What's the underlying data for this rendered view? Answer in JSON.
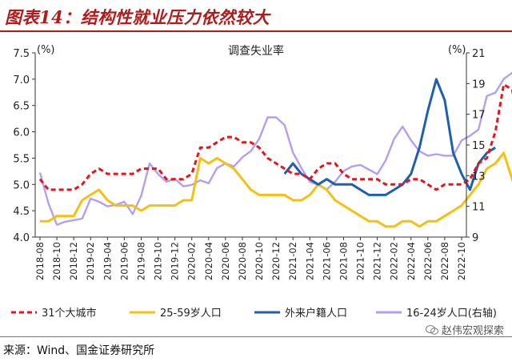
{
  "header": {
    "title": "图表14：结构性就业压力依然较大"
  },
  "footer": {
    "source": "来源：Wind、国金证券研究所"
  },
  "watermark": {
    "text": "赵伟宏观探索"
  },
  "chart_data": {
    "type": "line",
    "title": "调查失业率",
    "y_left": {
      "unit_label": "(%)",
      "ylim": [
        4.0,
        7.5
      ],
      "ticks": [
        "4.0",
        "4.5",
        "5.0",
        "5.5",
        "6.0",
        "6.5",
        "7.0",
        "7.5"
      ]
    },
    "y_right": {
      "unit_label": "(%)",
      "ylim": [
        9,
        21
      ],
      "ticks": [
        "9",
        "11",
        "13",
        "15",
        "17",
        "19",
        "21"
      ]
    },
    "x_ticks": [
      "2018-08",
      "2018-10",
      "2018-12",
      "2019-02",
      "2019-04",
      "2019-06",
      "2019-08",
      "2019-10",
      "2019-12",
      "2020-02",
      "2020-04",
      "2020-06",
      "2020-08",
      "2020-10",
      "2020-12",
      "2021-02",
      "2021-04",
      "2021-06",
      "2021-08",
      "2021-10",
      "2021-12",
      "2022-02",
      "2022-04",
      "2022-06",
      "2022-08",
      "2022-10"
    ],
    "x_start": "2018-08",
    "colors": {
      "cities31": "#e8141b",
      "age25_59": "#f5c012",
      "migrant": "#1f5fb0",
      "youth": "#b49ef0"
    },
    "series": [
      {
        "key": "cities31",
        "name": "31个大城市",
        "axis": "left",
        "style": "dashed",
        "start": "2018-08",
        "values": [
          5.1,
          4.9,
          4.9,
          4.9,
          4.9,
          5.0,
          5.2,
          5.3,
          5.2,
          5.2,
          5.2,
          5.2,
          5.3,
          5.3,
          5.3,
          5.1,
          5.1,
          5.1,
          5.2,
          5.7,
          5.7,
          5.8,
          5.9,
          5.9,
          5.8,
          5.8,
          5.7,
          5.5,
          5.4,
          5.3,
          5.2,
          5.2,
          5.1,
          5.3,
          5.4,
          5.4,
          5.2,
          5.1,
          5.1,
          5.1,
          5.1,
          5.0,
          5.0,
          5.0,
          5.1,
          5.1,
          5.0,
          4.9,
          5.0,
          5.0,
          5.0,
          5.1,
          5.4,
          5.5,
          6.0,
          6.9,
          6.8,
          6.0,
          5.6,
          5.4,
          5.3,
          5.6,
          5.7,
          5.8
        ]
      },
      {
        "key": "age25_59",
        "name": "25-59岁人口",
        "axis": "left",
        "style": "solid",
        "start": "2018-08",
        "values": [
          4.3,
          4.3,
          4.4,
          4.4,
          4.4,
          4.7,
          4.8,
          4.9,
          4.7,
          4.6,
          4.6,
          4.6,
          4.5,
          4.6,
          4.6,
          4.6,
          4.6,
          4.7,
          4.7,
          5.5,
          5.4,
          5.5,
          5.4,
          5.3,
          5.1,
          4.9,
          4.8,
          4.8,
          4.8,
          4.8,
          4.7,
          4.7,
          4.8,
          5.0,
          4.9,
          4.7,
          4.6,
          4.5,
          4.4,
          4.3,
          4.3,
          4.2,
          4.2,
          4.3,
          4.3,
          4.2,
          4.3,
          4.3,
          4.4,
          4.5,
          4.6,
          4.8,
          5.0,
          5.3,
          5.4,
          5.6,
          5.1,
          4.6,
          4.4,
          4.4,
          4.3,
          4.5,
          4.7,
          4.7
        ]
      },
      {
        "key": "migrant",
        "name": "外来户籍人口",
        "axis": "left",
        "style": "solid",
        "start": "2021-01",
        "values": [
          5.2,
          5.4,
          5.2,
          5.1,
          5.0,
          5.1,
          5.0,
          5.0,
          5.0,
          4.9,
          4.8,
          4.8,
          4.8,
          4.9,
          5.0,
          5.2,
          5.7,
          6.4,
          7.0,
          6.6,
          5.6,
          5.2,
          4.9,
          5.4,
          5.6,
          5.7
        ]
      },
      {
        "key": "youth",
        "name": "16-24岁人口(右轴)",
        "axis": "right",
        "style": "solid",
        "start": "2018-08",
        "values": [
          13.2,
          11.2,
          9.8,
          10.0,
          10.1,
          10.2,
          11.5,
          11.3,
          11.0,
          11.1,
          11.3,
          10.5,
          11.7,
          13.8,
          13.1,
          12.6,
          12.8,
          12.3,
          12.4,
          12.7,
          12.5,
          13.5,
          13.8,
          13.6,
          14.2,
          14.6,
          15.4,
          16.8,
          16.8,
          16.3,
          14.5,
          13.5,
          12.6,
          12.4,
          12.1,
          12.6,
          13.3,
          13.6,
          13.7,
          13.4,
          13.1,
          14.0,
          15.4,
          16.2,
          15.3,
          14.6,
          14.3,
          14.4,
          14.3,
          14.3,
          15.3,
          15.6,
          16.0,
          18.2,
          18.4,
          19.3,
          19.7,
          19.9,
          18.7,
          17.9,
          17.9,
          17.8
        ]
      }
    ],
    "legend": {
      "position": "bottom",
      "items": [
        "31个大城市",
        "25-59岁人口",
        "外来户籍人口",
        "16-24岁人口(右轴)"
      ]
    }
  }
}
